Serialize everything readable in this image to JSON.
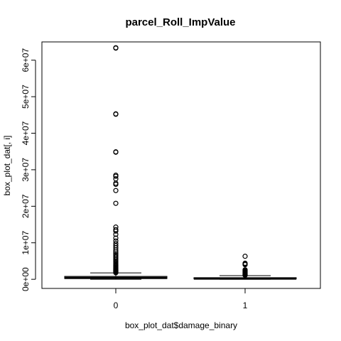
{
  "chart_data": {
    "type": "box",
    "title": "parcel_Roll_ImpValue",
    "xlabel": "box_plot_dat$damage_binary",
    "ylabel": "box_plot_dat[, i]",
    "categories": [
      "0",
      "1"
    ],
    "ylim": [
      -2500000,
      65000000
    ],
    "y_ticks": [
      0,
      10000000,
      20000000,
      30000000,
      40000000,
      50000000,
      60000000
    ],
    "y_tick_labels": [
      "0e+00",
      "1e+07",
      "2e+07",
      "3e+07",
      "4e+07",
      "5e+07",
      "6e+07"
    ],
    "grid": false,
    "legend": "none",
    "boxes": [
      {
        "category": "0",
        "min": 0,
        "q1": 200000,
        "median": 400000,
        "q3": 800000,
        "whisker_high": 1750000,
        "outliers": [
          1800000,
          1900000,
          2000000,
          2100000,
          2200000,
          2300000,
          2400000,
          2500000,
          2600000,
          2700000,
          2800000,
          2900000,
          3000000,
          3200000,
          3400000,
          3600000,
          3800000,
          4000000,
          4200000,
          4500000,
          4800000,
          5100000,
          5400000,
          5800000,
          6200000,
          6600000,
          7000000,
          7500000,
          8000000,
          8600000,
          9200000,
          9800000,
          10500000,
          11300000,
          12300000,
          13200000,
          13600000,
          14300000,
          20800000,
          24300000,
          26000000,
          26300000,
          27500000,
          28200000,
          28500000,
          34800000,
          34900000,
          45200000,
          45300000,
          63300000,
          63400000
        ]
      },
      {
        "category": "1",
        "min": 0,
        "q1": 100000,
        "median": 200000,
        "q3": 450000,
        "whisker_high": 1000000,
        "outliers": [
          1100000,
          1200000,
          1300000,
          1400000,
          1500000,
          1600000,
          1700000,
          1850000,
          2000000,
          2200000,
          2400000,
          2600000,
          4000000,
          4200000,
          4400000,
          6300000
        ]
      }
    ]
  }
}
